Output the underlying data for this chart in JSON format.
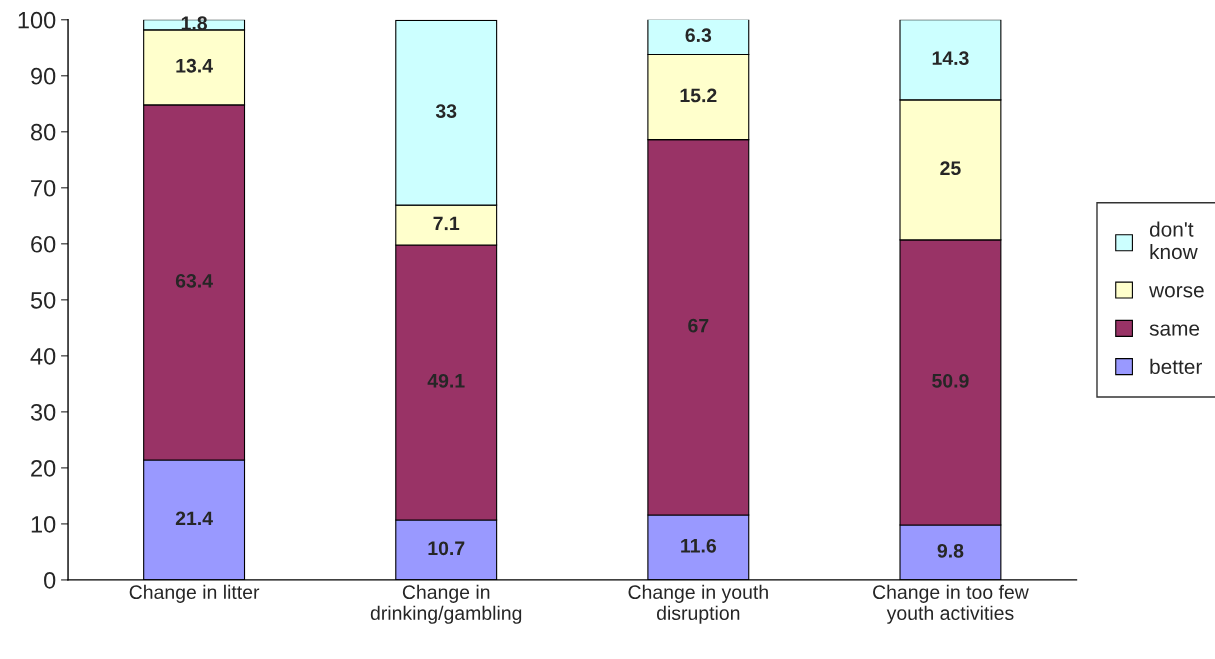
{
  "chart_data": {
    "type": "bar",
    "stacked": true,
    "categories": [
      "Change in litter",
      "Change in\ndrinking/gambling",
      "Change in youth\ndisruption",
      "Change in too few\nyouth activities"
    ],
    "series": [
      {
        "name": "better",
        "color": "#9999ff",
        "values": [
          21.4,
          10.7,
          11.6,
          9.8
        ]
      },
      {
        "name": "same",
        "color": "#993366",
        "values": [
          63.4,
          49.1,
          67,
          50.9
        ]
      },
      {
        "name": "worse",
        "color": "#ffffcc",
        "values": [
          13.4,
          7.1,
          15.2,
          25
        ]
      },
      {
        "name": "don't\nknow",
        "color": "#ccffff",
        "values": [
          1.8,
          33,
          6.3,
          14.3
        ]
      }
    ],
    "ylim": [
      0,
      100
    ],
    "yticks": [
      0,
      10,
      20,
      30,
      40,
      50,
      60,
      70,
      80,
      90,
      100
    ],
    "data_labels": true,
    "grid": false,
    "legend": "right"
  }
}
